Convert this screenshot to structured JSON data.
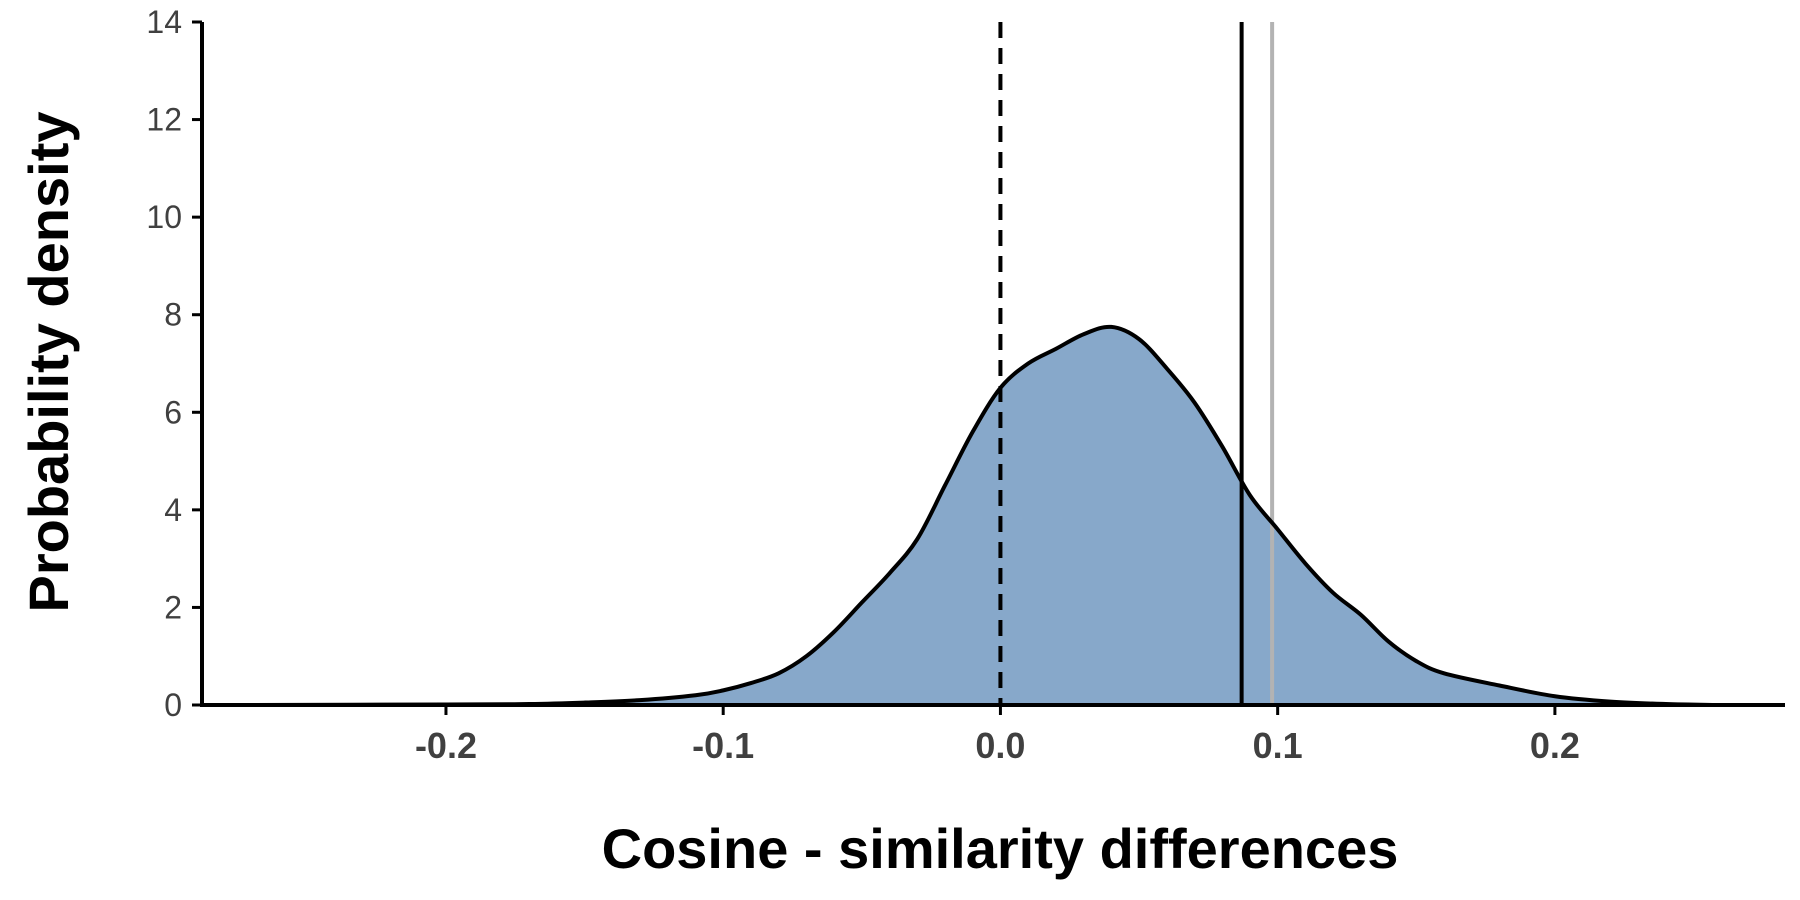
{
  "chart_data": {
    "type": "area",
    "xlabel": "Cosine - similarity differences",
    "ylabel": "Probability density",
    "xlim": [
      -0.288,
      0.283
    ],
    "ylim": [
      0,
      14
    ],
    "x_ticks": [
      "-0.2",
      "-0.1",
      "0.0",
      "0.1",
      "0.2"
    ],
    "y_ticks": [
      "0",
      "2",
      "4",
      "6",
      "8",
      "10",
      "12",
      "14"
    ],
    "grid": false,
    "legend": "none",
    "fill_color": "#87a8ca",
    "density_curve": {
      "x": [
        -0.27,
        -0.2,
        -0.17,
        -0.15,
        -0.13,
        -0.11,
        -0.1,
        -0.09,
        -0.08,
        -0.07,
        -0.06,
        -0.05,
        -0.04,
        -0.03,
        -0.02,
        -0.01,
        0.0,
        0.01,
        0.02,
        0.03,
        0.04,
        0.05,
        0.06,
        0.07,
        0.08,
        0.09,
        0.1,
        0.11,
        0.12,
        0.13,
        0.14,
        0.15,
        0.16,
        0.18,
        0.2,
        0.22,
        0.24,
        0.258
      ],
      "y": [
        0.0,
        0.01,
        0.02,
        0.05,
        0.1,
        0.2,
        0.3,
        0.45,
        0.65,
        1.0,
        1.5,
        2.1,
        2.7,
        3.4,
        4.5,
        5.6,
        6.5,
        7.0,
        7.3,
        7.6,
        7.75,
        7.5,
        6.9,
        6.2,
        5.3,
        4.3,
        3.6,
        2.9,
        2.3,
        1.85,
        1.3,
        0.9,
        0.65,
        0.4,
        0.18,
        0.07,
        0.02,
        0.0
      ]
    },
    "reference_lines": [
      {
        "x": 0.0,
        "style": "dashed",
        "color": "#000000"
      },
      {
        "x": 0.087,
        "style": "solid",
        "color": "#000000"
      },
      {
        "x": 0.098,
        "style": "solid",
        "color": "#b3b3b3"
      }
    ]
  }
}
